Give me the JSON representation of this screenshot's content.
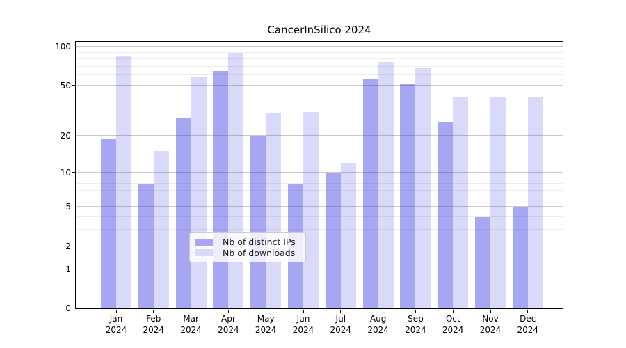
{
  "figure": {
    "title": "CancerInSilico 2024"
  },
  "chart_data": {
    "type": "bar",
    "title": "CancerInSilico 2024",
    "categories": [
      "Jan",
      "Feb",
      "Mar",
      "Apr",
      "May",
      "Jun",
      "Jul",
      "Aug",
      "Sep",
      "Oct",
      "Nov",
      "Dec"
    ],
    "category_year": "2024",
    "series": [
      {
        "name": "Nb of distinct IPs",
        "color": "#a6a6f2",
        "values": [
          19,
          8,
          28,
          65,
          20,
          8,
          10,
          56,
          52,
          26,
          4,
          5
        ]
      },
      {
        "name": "Nb of downloads",
        "color": "#d9d9fa",
        "values": [
          85,
          15,
          58,
          89,
          30,
          31,
          12,
          76,
          69,
          40,
          40,
          40
        ]
      }
    ],
    "y_scale": "log1p",
    "y_axis_ticks": [
      0,
      1,
      2,
      5,
      10,
      20,
      50,
      100
    ],
    "y_minor_gridlines": [
      3,
      4,
      6,
      7,
      8,
      9,
      30,
      40,
      60,
      70,
      80,
      90
    ],
    "ylim": [
      0,
      111
    ],
    "xlabel": "",
    "ylabel": "",
    "grid": true,
    "legend_position": "lower center"
  }
}
